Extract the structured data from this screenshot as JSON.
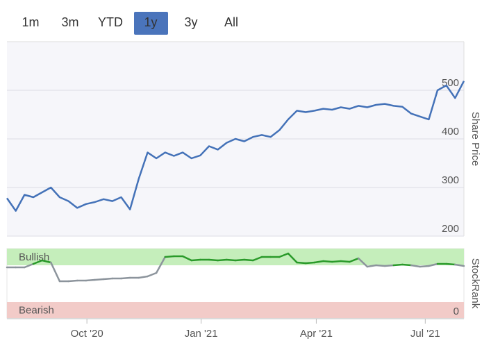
{
  "range_buttons": {
    "labels": [
      "1m",
      "3m",
      "YTD",
      "1y",
      "3y",
      "All"
    ],
    "active": 3
  },
  "chart_data": [
    {
      "type": "line",
      "y_axis_label": "Share Price",
      "series": [
        {
          "name": "Share Price",
          "color": "#4472b8",
          "values": [
            278,
            252,
            285,
            280,
            290,
            300,
            280,
            272,
            258,
            266,
            270,
            276,
            272,
            280,
            255,
            318,
            372,
            360,
            372,
            365,
            372,
            360,
            366,
            385,
            378,
            392,
            400,
            395,
            404,
            408,
            404,
            418,
            440,
            458,
            455,
            458,
            462,
            460,
            465,
            462,
            468,
            465,
            470,
            472,
            468,
            466,
            452,
            446,
            440,
            500,
            510,
            484,
            519
          ]
        }
      ],
      "xlim": [
        0,
        52
      ],
      "ylim": [
        200,
        600
      ],
      "yticks": [
        200,
        300,
        400,
        500
      ],
      "grid": true
    },
    {
      "type": "rank",
      "y_axis_label": "StockRank",
      "series": [
        {
          "name": "StockRank",
          "color": "#8c949c",
          "bullish_color": "#2a9a2a",
          "values": [
            73,
            73,
            73,
            78,
            83,
            80,
            53,
            53,
            54,
            54,
            55,
            56,
            57,
            57,
            58,
            58,
            60,
            65,
            88,
            89,
            89,
            83,
            84,
            84,
            83,
            84,
            83,
            84,
            83,
            88,
            88,
            88,
            93,
            80,
            79,
            80,
            82,
            81,
            82,
            81,
            86,
            74,
            76,
            75,
            76,
            77,
            76,
            74,
            75,
            78,
            78,
            77,
            75
          ]
        }
      ],
      "bands": [
        {
          "label": "Bullish",
          "from": 76,
          "to": 100,
          "color": "#c5eebb",
          "text_color": "#2a8a2a"
        },
        {
          "label": "Bearish",
          "from": 0,
          "to": 23,
          "color": "#f2cbc8",
          "text_color": "#d0404a"
        }
      ],
      "xlim": [
        0,
        52
      ],
      "xticks": [
        {
          "value": 9.1,
          "label": "Oct '20"
        },
        {
          "value": 22.1,
          "label": "Jan '21"
        },
        {
          "value": 35.2,
          "label": "Apr '21"
        },
        {
          "value": 47.6,
          "label": "Jul '21"
        }
      ],
      "ylim": [
        0,
        100
      ],
      "yticks": [
        0
      ]
    }
  ]
}
